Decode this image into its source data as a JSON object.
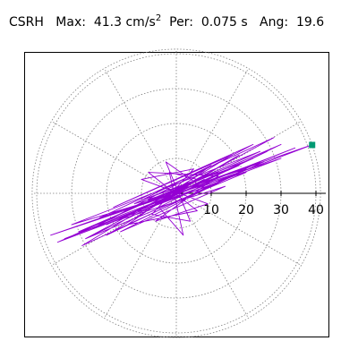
{
  "header": {
    "station": "CSRH",
    "max_label": "Max:",
    "max_value": "41.3",
    "max_unit": "cm/s",
    "max_unit_exp": "2",
    "per_label": "Per:",
    "per_value": "0.075 s",
    "ang_label": "Ang:",
    "ang_value": "19.6"
  },
  "colors": {
    "trace": "#9400d3",
    "marker": "#009a73",
    "grid": "#808080",
    "axis": "#000000"
  },
  "chart_data": {
    "type": "polar-orbit",
    "r_ticks": [
      10,
      20,
      30,
      40
    ],
    "r_max": 41.3,
    "angle_grid_step_deg": 30,
    "peak_angle_deg": 19.6,
    "grid": true,
    "marker": {
      "r": 41.3,
      "angle_deg": 19.6
    },
    "orbit": [
      {
        "x": 0,
        "y": 0
      },
      {
        "x": 3,
        "y": 1
      },
      {
        "x": -4,
        "y": -2
      },
      {
        "x": 8,
        "y": 4
      },
      {
        "x": -6,
        "y": -3
      },
      {
        "x": 12,
        "y": 3
      },
      {
        "x": -14,
        "y": -6
      },
      {
        "x": 18,
        "y": 8
      },
      {
        "x": -10,
        "y": -2
      },
      {
        "x": 22,
        "y": 10
      },
      {
        "x": -20,
        "y": -9
      },
      {
        "x": 26,
        "y": 12
      },
      {
        "x": -24,
        "y": -12
      },
      {
        "x": 30,
        "y": 14
      },
      {
        "x": -28,
        "y": -11
      },
      {
        "x": 34,
        "y": 13
      },
      {
        "x": -32,
        "y": -13
      },
      {
        "x": 38.9,
        "y": 13.9
      },
      {
        "x": -36,
        "y": -12
      },
      {
        "x": 30,
        "y": 10
      },
      {
        "x": -34,
        "y": -14
      },
      {
        "x": 24,
        "y": 12
      },
      {
        "x": -30,
        "y": -9
      },
      {
        "x": 20,
        "y": 6
      },
      {
        "x": -26,
        "y": -13
      },
      {
        "x": 28,
        "y": 16
      },
      {
        "x": -22,
        "y": -7
      },
      {
        "x": 25,
        "y": 9
      },
      {
        "x": -27,
        "y": -15
      },
      {
        "x": 16,
        "y": 11
      },
      {
        "x": -18,
        "y": -4
      },
      {
        "x": 22,
        "y": 14
      },
      {
        "x": -24,
        "y": -10
      },
      {
        "x": 14,
        "y": 2
      },
      {
        "x": -16,
        "y": -11
      },
      {
        "x": 20,
        "y": 7
      },
      {
        "x": -12,
        "y": -3
      },
      {
        "x": 10,
        "y": 8
      },
      {
        "x": -14,
        "y": -9
      },
      {
        "x": 6,
        "y": -5
      },
      {
        "x": -8,
        "y": 6
      },
      {
        "x": 12,
        "y": 5
      },
      {
        "x": -6,
        "y": -8
      },
      {
        "x": 9,
        "y": -3
      },
      {
        "x": -10,
        "y": 4
      },
      {
        "x": 5,
        "y": 7
      },
      {
        "x": -7,
        "y": -6
      },
      {
        "x": 4,
        "y": -8
      },
      {
        "x": -3,
        "y": 9
      },
      {
        "x": 7,
        "y": 2
      },
      {
        "x": -5,
        "y": -4
      },
      {
        "x": 2,
        "y": -12
      },
      {
        "x": -2,
        "y": 6
      },
      {
        "x": 6,
        "y": 4
      },
      {
        "x": -9,
        "y": -5
      },
      {
        "x": 18,
        "y": 11
      },
      {
        "x": -20,
        "y": -12
      },
      {
        "x": 24,
        "y": 9
      },
      {
        "x": -15,
        "y": -5
      },
      {
        "x": 12,
        "y": 6
      },
      {
        "x": -8,
        "y": -2
      },
      {
        "x": 4,
        "y": 3
      },
      {
        "x": -3,
        "y": -1
      },
      {
        "x": 0,
        "y": 0
      }
    ]
  }
}
